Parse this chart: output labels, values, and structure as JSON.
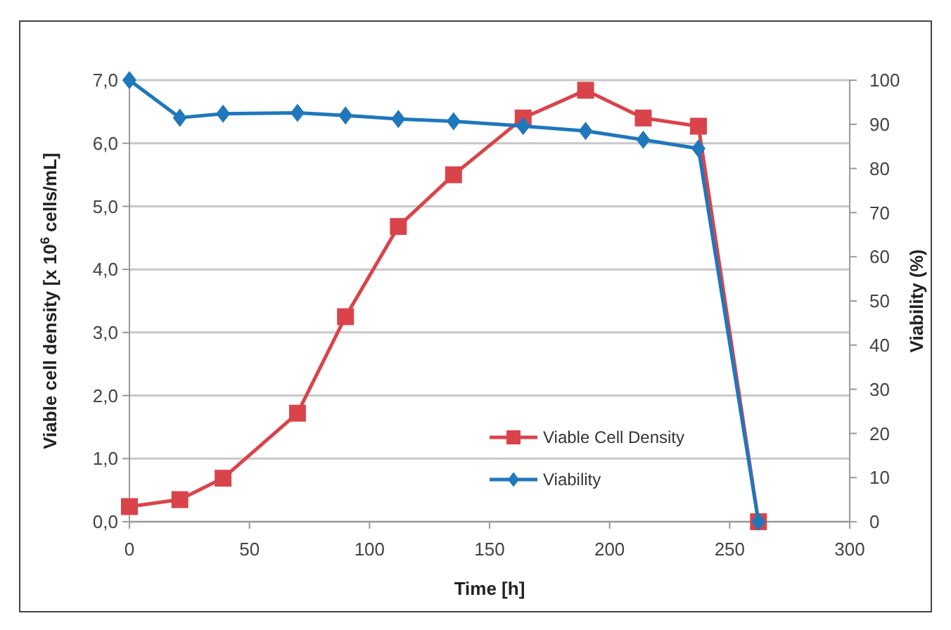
{
  "chart_data": {
    "type": "line",
    "xlabel": "Time [h]",
    "ylabel": "Viable cell density [x 10$^{6}$ cells/mL]",
    "y2label": "Viability (%)",
    "x": [
      0,
      21,
      39,
      70,
      90,
      112,
      135,
      164,
      190,
      214,
      237,
      262
    ],
    "series": [
      {
        "name": "Viable Cell Density",
        "color": "#d9444a",
        "marker": "square",
        "values": [
          0.24,
          0.35,
          0.69,
          1.72,
          3.25,
          4.68,
          5.5,
          6.4,
          6.84,
          6.4,
          6.27,
          0
        ]
      },
      {
        "name": "Viability",
        "color": "#1f77bc",
        "marker": "diamond",
        "axis": "y2",
        "values": [
          100,
          91.5,
          92.4,
          92.6,
          92,
          91.2,
          90.7,
          89.6,
          88.5,
          86.5,
          84.5,
          0
        ]
      }
    ],
    "xlim": [
      0,
      300
    ],
    "xticks": [
      0,
      50,
      100,
      150,
      200,
      250,
      300
    ],
    "ylim": [
      0,
      7
    ],
    "yticks": [
      {
        "value": 0,
        "label": "0,0"
      },
      {
        "value": 1,
        "label": "1,0"
      },
      {
        "value": 2,
        "label": "2,0"
      },
      {
        "value": 3,
        "label": "3,0"
      },
      {
        "value": 4,
        "label": "4,0"
      },
      {
        "value": 5,
        "label": "5,0"
      },
      {
        "value": 6,
        "label": "6,0"
      },
      {
        "value": 7,
        "label": "7,0"
      }
    ],
    "y2lim": [
      0,
      100
    ],
    "y2ticks": [
      0,
      10,
      20,
      30,
      40,
      50,
      60,
      70,
      80,
      90,
      100
    ],
    "grid": "y",
    "legend": "bottom right"
  }
}
